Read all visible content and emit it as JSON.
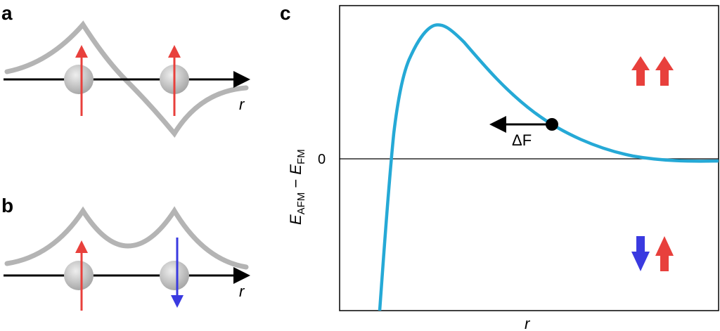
{
  "panels": {
    "a": {
      "label": "a",
      "axis_label": "r"
    },
    "b": {
      "label": "b",
      "axis_label": "r"
    },
    "c": {
      "label": "c",
      "x_label": "r",
      "y_label_main": "E",
      "y_label_sub1": "AFM",
      "y_label_minus": " − ",
      "y_label_sub2": "FM",
      "zero_tick": "0",
      "force_label": "ΔF"
    }
  },
  "colors": {
    "curve": "#25a9d6",
    "wave": "#b4b4b4",
    "spin_up": "#e8403c",
    "spin_down": "#3a3ae0",
    "axis": "#000000"
  }
}
